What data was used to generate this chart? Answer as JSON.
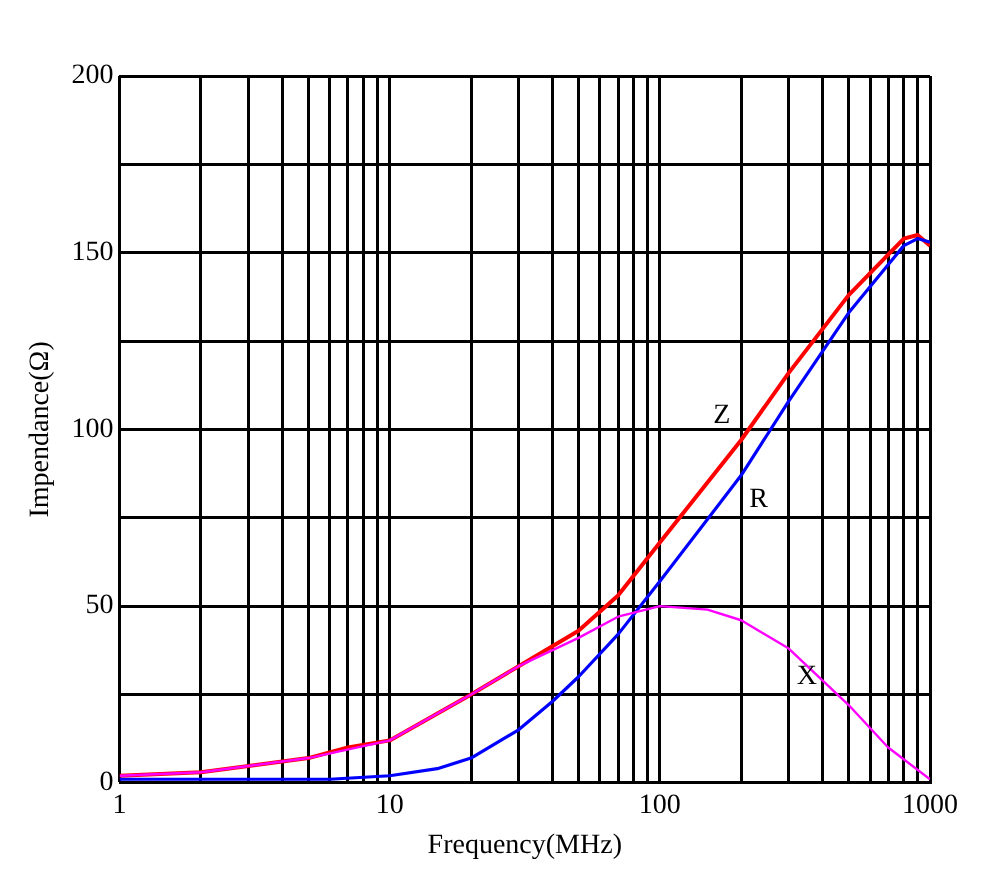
{
  "chart_data": {
    "type": "line",
    "xlabel": "Frequency(MHz)",
    "ylabel": "Impendance(Ω)",
    "log": "x",
    "grid": true,
    "legend": false,
    "marker": "none",
    "line_style": "solid",
    "xlim": [
      1,
      1000
    ],
    "ylim": [
      0,
      200
    ],
    "xticks": [
      1,
      {
        "value": 2,
        "label": null
      },
      {
        "value": 3,
        "label": null
      },
      {
        "value": 4,
        "label": null
      },
      {
        "value": 5,
        "label": null
      },
      {
        "value": 6,
        "label": null
      },
      {
        "value": 7,
        "label": null
      },
      {
        "value": 8,
        "label": null
      },
      {
        "value": 9,
        "label": null
      },
      10,
      {
        "value": 20,
        "label": null
      },
      {
        "value": 30,
        "label": null
      },
      {
        "value": 40,
        "label": null
      },
      {
        "value": 50,
        "label": null
      },
      {
        "value": 60,
        "label": null
      },
      {
        "value": 70,
        "label": null
      },
      {
        "value": 80,
        "label": null
      },
      {
        "value": 90,
        "label": null
      },
      100,
      {
        "value": 200,
        "label": null
      },
      {
        "value": 300,
        "label": null
      },
      {
        "value": 400,
        "label": null
      },
      {
        "value": 500,
        "label": null
      },
      {
        "value": 600,
        "label": null
      },
      {
        "value": 700,
        "label": null
      },
      {
        "value": 800,
        "label": null
      },
      {
        "value": 900,
        "label": null
      },
      1000
    ],
    "yticks": [
      0,
      {
        "value": 25,
        "label": null
      },
      50,
      {
        "value": 75,
        "label": null
      },
      100,
      {
        "value": 125,
        "label": null
      },
      150,
      {
        "value": 175,
        "label": null
      },
      200
    ],
    "series": [
      {
        "name": "Z",
        "color": "#ff0000",
        "x": [
          1,
          2,
          5,
          7,
          10,
          20,
          30,
          50,
          70,
          100,
          200,
          300,
          500,
          800,
          900,
          1000
        ],
        "values": [
          2,
          3,
          7,
          10,
          12,
          25,
          33,
          43,
          53,
          68,
          97,
          116,
          138,
          154,
          155,
          152
        ]
      },
      {
        "name": "R",
        "color": "#0000ff",
        "x": [
          1,
          6,
          10,
          15,
          20,
          30,
          40,
          50,
          70,
          100,
          200,
          300,
          500,
          800,
          900,
          1000
        ],
        "values": [
          1,
          1,
          2,
          4,
          7,
          15,
          23,
          30,
          42,
          57,
          87,
          108,
          133,
          152,
          154,
          153
        ]
      },
      {
        "name": "X",
        "color": "#ff00ff",
        "x": [
          1,
          2,
          5,
          10,
          20,
          30,
          50,
          70,
          100,
          150,
          200,
          300,
          500,
          700,
          1000
        ],
        "values": [
          2,
          3,
          7,
          12,
          25,
          33,
          41,
          47,
          50,
          49,
          46,
          38,
          22,
          10,
          1
        ]
      }
    ]
  }
}
